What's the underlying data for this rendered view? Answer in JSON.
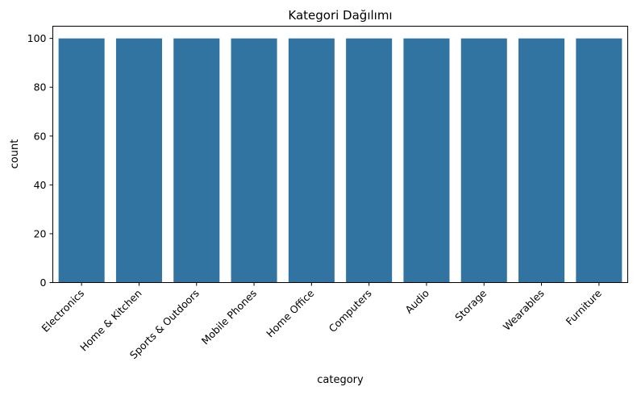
{
  "chart_data": {
    "type": "bar",
    "title": "Kategori Dağılımı",
    "xlabel": "category",
    "ylabel": "count",
    "categories": [
      "Electronics",
      "Home & Kitchen",
      "Sports & Outdoors",
      "Mobile Phones",
      "Home Office",
      "Computers",
      "Audio",
      "Storage",
      "Wearables",
      "Furniture"
    ],
    "values": [
      100,
      100,
      100,
      100,
      100,
      100,
      100,
      100,
      100,
      100
    ],
    "ylim": [
      0,
      105
    ],
    "yticks": [
      0,
      20,
      40,
      60,
      80,
      100
    ],
    "bar_color": "#3274a1",
    "grid": false,
    "legend": "none"
  }
}
